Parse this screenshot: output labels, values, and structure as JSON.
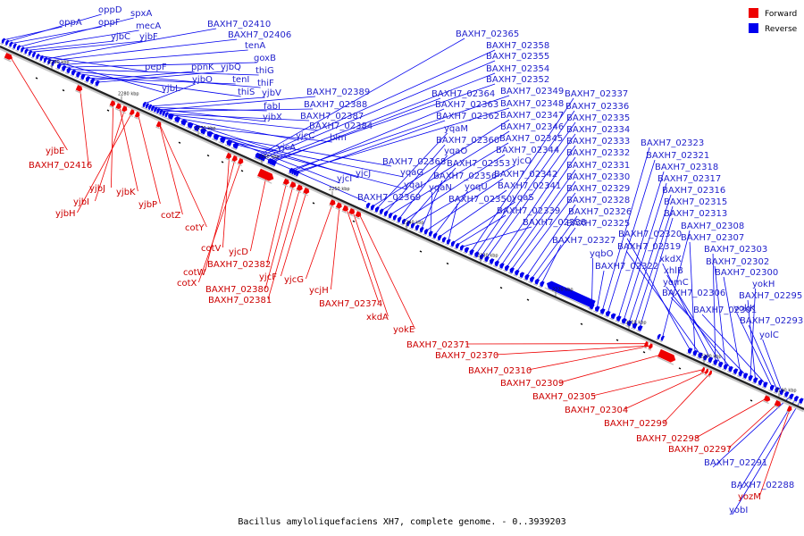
{
  "legend": {
    "forward": {
      "label": "Forward",
      "color": "#ee0000"
    },
    "reverse": {
      "label": "Reverse",
      "color": "#0000ee"
    }
  },
  "caption": "Bacillus amyloliquefaciens XH7, complete genome. - 0..3939203",
  "ticks": [
    "2290 kbp",
    "2280 kbp",
    "2270 kbp",
    "2260 kbp",
    "2250 kbp",
    "2240 kbp",
    "2230 kbp",
    "2220 kbp",
    "2210 kbp",
    "2200 kbp",
    "2190 kbp"
  ],
  "reverse_labels": [
    "oppA",
    "oppD",
    "oppF",
    "spxA",
    "mecA",
    "yjbC",
    "yjbF",
    "pepF",
    "yjbL",
    "BAXH7_02410",
    "BAXH7_02406",
    "tenA",
    "goxB",
    "thiG",
    "thiF",
    "thiS",
    "tenI",
    "ppnK",
    "yjbQ",
    "yjbO",
    "yjbV",
    "fabI",
    "yjbX",
    "BAXH7_02389",
    "BAXH7_02388",
    "BAXH7_02387",
    "BAXH7_02384",
    "yjcC",
    "yjcA",
    "blm",
    "yjcI",
    "yjcJ",
    "BAXH7_02368",
    "yqaG",
    "yqaI",
    "BAXH7_02369",
    "BAXH7_02365",
    "BAXH7_02358",
    "BAXH7_02355",
    "BAXH7_02354",
    "BAXH7_02352",
    "BAXH7_02364",
    "BAXH7_02349",
    "BAXH7_02363",
    "BAXH7_02348",
    "BAXH7_02362",
    "BAXH7_02347",
    "yqaM",
    "BAXH7_02346",
    "BAXH7_02360",
    "BAXH7_02345",
    "yqaO",
    "BAXH7_02344",
    "BAXH7_02353",
    "yjcO",
    "BAXH7_02356",
    "BAXH7_02342",
    "yqaN",
    "yoqU",
    "BAXH7_02341",
    "BAXH7_02350",
    "yqaS",
    "BAXH7_02339",
    "BAXH7_02338",
    "BAXH7_02337",
    "BAXH7_02336",
    "BAXH7_02335",
    "BAXH7_02334",
    "BAXH7_02333",
    "BAXH7_02332",
    "BAXH7_02331",
    "BAXH7_02330",
    "BAXH7_02329",
    "BAXH7_02328",
    "BAXH7_02326",
    "BAXH7_02325",
    "BAXH7_02327",
    "yqbO",
    "BAXH7_02322",
    "BAXH7_02323",
    "BAXH7_02321",
    "BAXH7_02318",
    "BAXH7_02317",
    "BAXH7_02316",
    "BAXH7_02315",
    "BAXH7_02313",
    "BAXH7_02308",
    "BAXH7_02320",
    "BAXH7_02307",
    "BAXH7_02319",
    "xkdX",
    "BAXH7_02303",
    "xhlB",
    "BAXH7_02302",
    "yomC",
    "BAXH7_02300",
    "BAXH7_02306",
    "yokH",
    "BAXH7_02295",
    "BAXH7_02301",
    "yokK",
    "BAXH7_02293",
    "yolC",
    "BAXH7_02291",
    "BAXH7_02288",
    "yobI"
  ],
  "forward_labels": [
    "yjbE",
    "BAXH7_02416",
    "yjbJ",
    "yjbK",
    "yjbI",
    "yjbH",
    "yjbP",
    "cotZ",
    "cotY",
    "cotV",
    "cotW",
    "cotX",
    "yjcD",
    "BAXH7_02382",
    "BAXH7_02380",
    "BAXH7_02381",
    "yjcF",
    "yjcG",
    "ycjH",
    "BAXH7_02374",
    "xkdA",
    "yokE",
    "BAXH7_02371",
    "BAXH7_02370",
    "BAXH7_02310",
    "BAXH7_02309",
    "BAXH7_02305",
    "BAXH7_02304",
    "BAXH7_02299",
    "BAXH7_02298",
    "BAXH7_02297",
    "yozM"
  ]
}
